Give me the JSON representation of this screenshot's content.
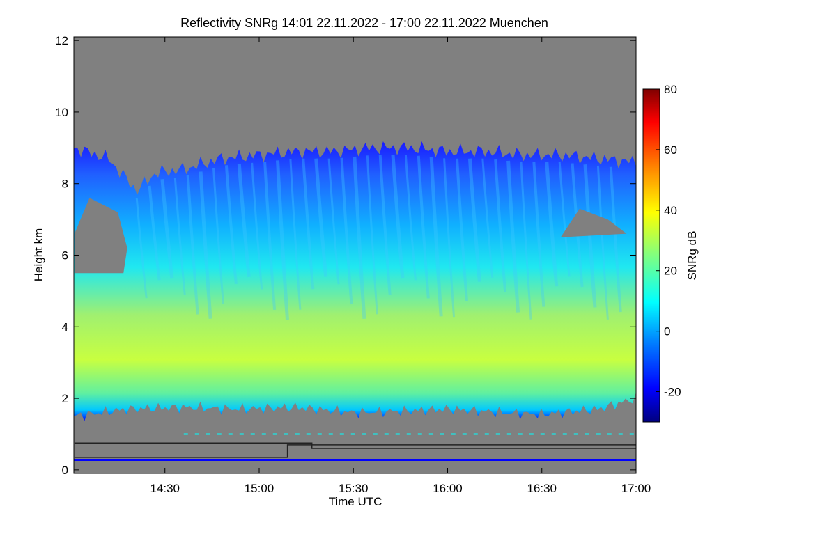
{
  "chart_data": {
    "type": "heatmap",
    "title": "Reflectivity SNRg   14:01 22.11.2022 - 17:00 22.11.2022 Muenchen",
    "xlabel": "Time UTC",
    "ylabel": "Height km",
    "xlim_hours": [
      14.0167,
      17.0
    ],
    "ylim": [
      -0.1,
      12.1
    ],
    "x_ticks": [
      {
        "value": 14.5,
        "label": "14:30"
      },
      {
        "value": 15.0,
        "label": "15:00"
      },
      {
        "value": 15.5,
        "label": "15:30"
      },
      {
        "value": 16.0,
        "label": "16:00"
      },
      {
        "value": 16.5,
        "label": "16:30"
      },
      {
        "value": 17.0,
        "label": "17:00"
      }
    ],
    "y_ticks": [
      0,
      2,
      4,
      6,
      8,
      10,
      12
    ],
    "colorbar": {
      "label": "SNRg dB",
      "range": [
        -30,
        80
      ],
      "ticks": [
        -20,
        0,
        20,
        40,
        60,
        80
      ]
    },
    "cloud_top_km": [
      [
        14.02,
        9.0
      ],
      [
        14.2,
        8.7
      ],
      [
        14.35,
        7.8
      ],
      [
        14.45,
        8.3
      ],
      [
        14.6,
        8.4
      ],
      [
        14.8,
        8.7
      ],
      [
        15.0,
        8.8
      ],
      [
        15.2,
        8.9
      ],
      [
        15.4,
        8.9
      ],
      [
        15.6,
        9.0
      ],
      [
        15.8,
        9.0
      ],
      [
        16.0,
        8.9
      ],
      [
        16.2,
        8.9
      ],
      [
        16.4,
        8.8
      ],
      [
        16.6,
        8.8
      ],
      [
        16.8,
        8.7
      ],
      [
        17.0,
        8.6
      ]
    ],
    "cloud_base_km": [
      [
        14.02,
        1.5
      ],
      [
        14.3,
        1.7
      ],
      [
        14.6,
        1.75
      ],
      [
        14.9,
        1.7
      ],
      [
        15.2,
        1.75
      ],
      [
        15.5,
        1.6
      ],
      [
        15.8,
        1.65
      ],
      [
        16.0,
        1.7
      ],
      [
        16.3,
        1.6
      ],
      [
        16.5,
        1.55
      ],
      [
        16.8,
        1.7
      ],
      [
        17.0,
        2.0
      ]
    ],
    "max_snr_layer_km": 2.6,
    "max_snr_db": 38,
    "black_line_km": [
      [
        14.02,
        0.75
      ],
      [
        15.28,
        0.75
      ],
      [
        15.28,
        0.6
      ],
      [
        17.0,
        0.6
      ]
    ],
    "lower_black_line_km": [
      [
        14.02,
        0.35
      ],
      [
        15.15,
        0.35
      ],
      [
        15.15,
        0.7
      ],
      [
        17.0,
        0.7
      ]
    ],
    "blue_line_km": 0.28,
    "colors": {
      "background": "#808080",
      "axis": "#000000"
    }
  }
}
